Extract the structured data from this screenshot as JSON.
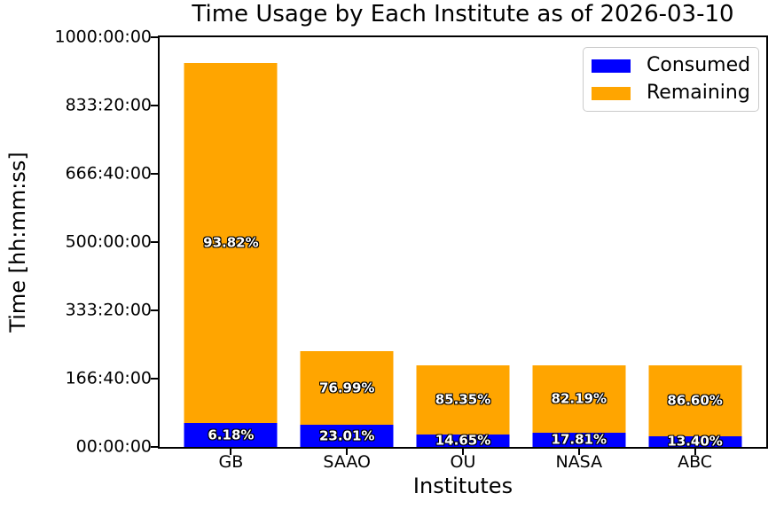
{
  "chart_data": {
    "type": "bar",
    "stacked": true,
    "title": "Time Usage by Each Institute as of 2026-03-10",
    "xlabel": "Institutes",
    "ylabel": "Time [hh:mm:ss]",
    "categories": [
      "GB",
      "SAAO",
      "OU",
      "NASA",
      "ABC"
    ],
    "y_axis": {
      "ticks": [
        "00:00:00",
        "166:40:00",
        "333:20:00",
        "500:00:00",
        "666:40:00",
        "833:20:00",
        "1000:00:00"
      ],
      "max_hours": 1000,
      "tick_step_hours": 166.6667
    },
    "totals_hours": [
      937.5,
      233.33,
      200,
      200,
      200
    ],
    "series": [
      {
        "name": "Consumed",
        "color": "#0000ff",
        "values_hours": [
          57.94,
          53.69,
          29.3,
          35.62,
          26.8
        ],
        "labels": [
          "6.18%",
          "23.01%",
          "14.65%",
          "17.81%",
          "13.40%"
        ]
      },
      {
        "name": "Remaining",
        "color": "#ffa500",
        "values_hours": [
          879.56,
          179.64,
          170.7,
          164.38,
          173.2
        ],
        "labels": [
          "93.82%",
          "76.99%",
          "85.35%",
          "82.19%",
          "86.60%"
        ]
      }
    ],
    "legend": {
      "position": "upper right",
      "entries": [
        {
          "label": "Consumed",
          "color": "#0000ff"
        },
        {
          "label": "Remaining",
          "color": "#ffa500"
        }
      ]
    },
    "grid": false,
    "background": "#ffffff"
  }
}
